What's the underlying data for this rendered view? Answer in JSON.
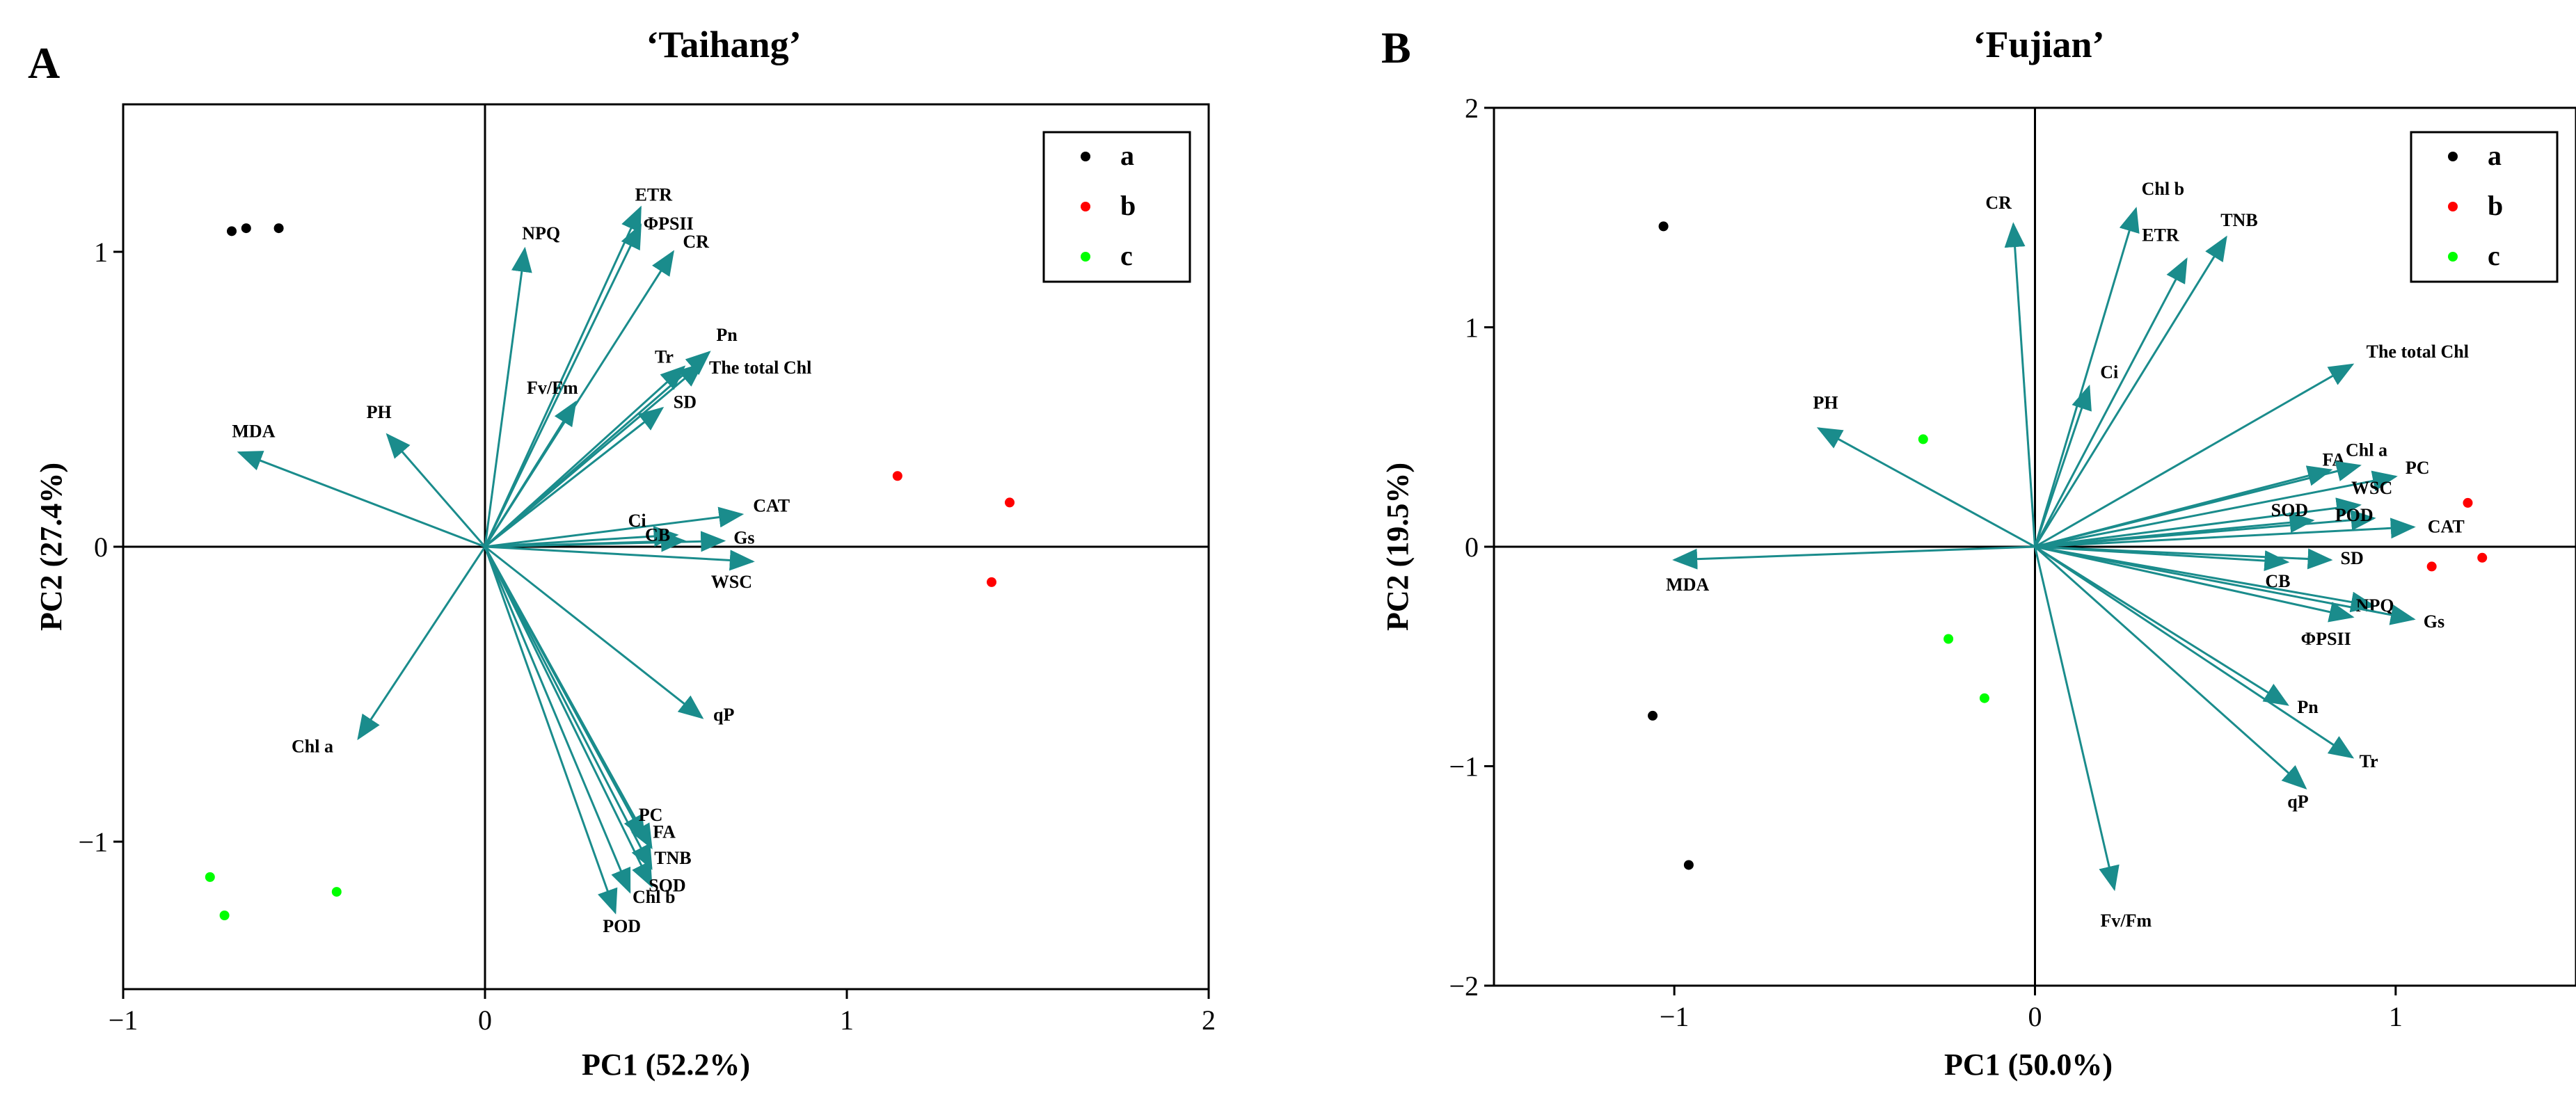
{
  "figure_letters": [
    "A",
    "B"
  ],
  "colors": {
    "vector": "#1a8c8c",
    "a": "#000000",
    "b": "#ff0000",
    "c": "#00ff00"
  },
  "chart_data": [
    {
      "type": "scatter",
      "subtype": "pca-biplot",
      "panel": "A",
      "title": "‘Taihang’",
      "xlabel": "PC1 (52.2%)",
      "ylabel": "PC2 (27.4%)",
      "xlim": [
        -1,
        2
      ],
      "ylim": [
        -1.5,
        1.5
      ],
      "xticks": [
        -1,
        0,
        1,
        2
      ],
      "xtick_labels": [
        "−1",
        "0",
        "1",
        "2"
      ],
      "yticks": [
        -1,
        0,
        1
      ],
      "ytick_labels": [
        "−1",
        "0",
        "1"
      ],
      "legend": {
        "position": "top-right",
        "entries": [
          "a",
          "b",
          "c"
        ]
      },
      "groups": [
        {
          "name": "a",
          "points": [
            [
              -0.7,
              1.07
            ],
            [
              -0.66,
              1.08
            ],
            [
              -0.57,
              1.08
            ]
          ]
        },
        {
          "name": "b",
          "points": [
            [
              1.14,
              0.24
            ],
            [
              1.45,
              0.15
            ],
            [
              1.4,
              -0.12
            ]
          ]
        },
        {
          "name": "c",
          "points": [
            [
              -0.76,
              -1.12
            ],
            [
              -0.72,
              -1.25
            ],
            [
              -0.41,
              -1.17
            ]
          ]
        }
      ],
      "vectors": [
        {
          "label": "ETR",
          "x": 0.43,
          "y": 1.15
        },
        {
          "label": "ΦPSII",
          "x": 0.43,
          "y": 1.09
        },
        {
          "label": "CR",
          "x": 0.52,
          "y": 1.0
        },
        {
          "label": "NPQ",
          "x": 0.11,
          "y": 1.01
        },
        {
          "label": "Tr",
          "x": 0.55,
          "y": 0.61
        },
        {
          "label": "Pn",
          "x": 0.62,
          "y": 0.66
        },
        {
          "label": "The total Chl",
          "x": 0.6,
          "y": 0.62
        },
        {
          "label": "Fv/Fm",
          "x": 0.25,
          "y": 0.49
        },
        {
          "label": "SD",
          "x": 0.49,
          "y": 0.47
        },
        {
          "label": "MDA",
          "x": -0.68,
          "y": 0.32
        },
        {
          "label": "PH",
          "x": -0.27,
          "y": 0.38
        },
        {
          "label": "CAT",
          "x": 0.71,
          "y": 0.11
        },
        {
          "label": "Ci",
          "x": 0.53,
          "y": 0.04
        },
        {
          "label": "CB",
          "x": 0.55,
          "y": 0.02
        },
        {
          "label": "Gs",
          "x": 0.66,
          "y": 0.02
        },
        {
          "label": "WSC",
          "x": 0.74,
          "y": -0.05
        },
        {
          "label": "qP",
          "x": 0.6,
          "y": -0.58
        },
        {
          "label": "Chl a",
          "x": -0.35,
          "y": -0.65
        },
        {
          "label": "PC",
          "x": 0.44,
          "y": -0.99
        },
        {
          "label": "FA",
          "x": 0.46,
          "y": -1.02
        },
        {
          "label": "TNB",
          "x": 0.46,
          "y": -1.09
        },
        {
          "label": "SOD",
          "x": 0.46,
          "y": -1.15
        },
        {
          "label": "Chl b",
          "x": 0.4,
          "y": -1.17
        },
        {
          "label": "POD",
          "x": 0.36,
          "y": -1.24
        }
      ]
    },
    {
      "type": "scatter",
      "subtype": "pca-biplot",
      "panel": "B",
      "title": "‘Fujian’",
      "xlabel": "PC1 (50.0%)",
      "ylabel": "PC2 (19.5%)",
      "xlim": [
        -1.5,
        1.5
      ],
      "ylim": [
        -2,
        2
      ],
      "xticks": [
        -1,
        0,
        1
      ],
      "xtick_labels": [
        "−1",
        "0",
        "1"
      ],
      "yticks": [
        -2,
        -1,
        0,
        1,
        2
      ],
      "ytick_labels": [
        "−2",
        "−1",
        "0",
        "1",
        "2"
      ],
      "legend": {
        "position": "top-right",
        "entries": [
          "a",
          "b",
          "c"
        ]
      },
      "groups": [
        {
          "name": "a",
          "points": [
            [
              -1.03,
              1.46
            ],
            [
              -1.06,
              -0.77
            ],
            [
              -0.96,
              -1.45
            ]
          ]
        },
        {
          "name": "b",
          "points": [
            [
              1.2,
              0.2
            ],
            [
              1.1,
              -0.09
            ],
            [
              1.24,
              -0.05
            ]
          ]
        },
        {
          "name": "c",
          "points": [
            [
              -0.31,
              0.49
            ],
            [
              -0.24,
              -0.42
            ],
            [
              -0.14,
              -0.69
            ]
          ]
        }
      ],
      "vectors": [
        {
          "label": "CR",
          "x": -0.06,
          "y": 1.47
        },
        {
          "label": "Chl b",
          "x": 0.28,
          "y": 1.54
        },
        {
          "label": "TNB",
          "x": 0.53,
          "y": 1.41
        },
        {
          "label": "ETR",
          "x": 0.42,
          "y": 1.31
        },
        {
          "label": "Ci",
          "x": 0.15,
          "y": 0.73
        },
        {
          "label": "The total Chl",
          "x": 0.88,
          "y": 0.83
        },
        {
          "label": "PH",
          "x": -0.6,
          "y": 0.54
        },
        {
          "label": "FA",
          "x": 0.82,
          "y": 0.35
        },
        {
          "label": "Chl a",
          "x": 0.9,
          "y": 0.37
        },
        {
          "label": "PC",
          "x": 1.0,
          "y": 0.32
        },
        {
          "label": "WSC",
          "x": 0.9,
          "y": 0.19
        },
        {
          "label": "SOD",
          "x": 0.77,
          "y": 0.12
        },
        {
          "label": "POD",
          "x": 0.94,
          "y": 0.13
        },
        {
          "label": "CAT",
          "x": 1.05,
          "y": 0.09
        },
        {
          "label": "MDA",
          "x": -1.0,
          "y": -0.06
        },
        {
          "label": "SD",
          "x": 0.82,
          "y": -0.06
        },
        {
          "label": "CB",
          "x": 0.7,
          "y": -0.07
        },
        {
          "label": "NPQ",
          "x": 0.94,
          "y": -0.27
        },
        {
          "label": "ΦPSII",
          "x": 0.88,
          "y": -0.32
        },
        {
          "label": "Gs",
          "x": 1.05,
          "y": -0.33
        },
        {
          "label": "Pn",
          "x": 0.7,
          "y": -0.72
        },
        {
          "label": "Tr",
          "x": 0.88,
          "y": -0.96
        },
        {
          "label": "qP",
          "x": 0.75,
          "y": -1.1
        },
        {
          "label": "Fv/Fm",
          "x": 0.22,
          "y": -1.56
        }
      ]
    }
  ]
}
